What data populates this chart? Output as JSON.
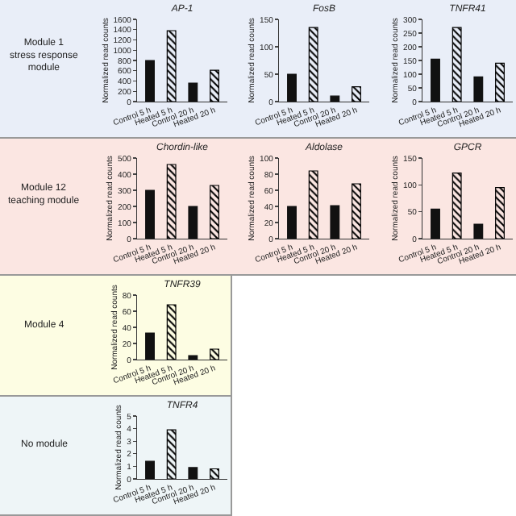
{
  "chart_data": [
    {
      "type": "bar",
      "title": "AP-1",
      "ylabel": "Normalized read counts",
      "categories": [
        "Control 5 h",
        "Heated 5 h",
        "Control 20 h",
        "Heated 20 h"
      ],
      "values": [
        800,
        1380,
        360,
        610
      ],
      "colors": [
        "#111111",
        "#000000",
        "#111111",
        "#000000"
      ],
      "ylim": [
        0,
        1600
      ],
      "yticks": [
        0,
        200,
        400,
        600,
        800,
        1000,
        1200,
        1400,
        1600
      ],
      "annotations": [
        "Module 1\nstress response\nmodule"
      ]
    },
    {
      "type": "bar",
      "title": "FosB",
      "ylabel": "Normalized read counts",
      "categories": [
        "Control 5 h",
        "Heated 5 h",
        "Control 20 h",
        "Heated 20 h"
      ],
      "values": [
        50,
        135,
        10,
        27
      ],
      "colors": [
        "#111111",
        "#000000",
        "#111111",
        "#000000"
      ],
      "ylim": [
        0,
        150
      ],
      "yticks": [
        0,
        50,
        100,
        150
      ]
    },
    {
      "type": "bar",
      "title": "TNFR41",
      "ylabel": "Normalized read counts",
      "categories": [
        "Control 5 h",
        "Heated 5 h",
        "Control 20 h",
        "Heated 20 h"
      ],
      "values": [
        155,
        270,
        90,
        140
      ],
      "colors": [
        "#111111",
        "#000000",
        "#111111",
        "#000000"
      ],
      "ylim": [
        0,
        300
      ],
      "yticks": [
        0,
        50,
        100,
        150,
        200,
        250,
        300
      ]
    },
    {
      "type": "bar",
      "title": "Chordin-like",
      "ylabel": "Normalized read counts",
      "categories": [
        "Control 5 h",
        "Heated 5 h",
        "Control 20 h",
        "Heated 20 h"
      ],
      "values": [
        300,
        460,
        200,
        330
      ],
      "colors": [
        "#111111",
        "#000000",
        "#111111",
        "#000000"
      ],
      "ylim": [
        0,
        500
      ],
      "yticks": [
        0,
        100,
        200,
        300,
        400,
        500
      ],
      "annotations": [
        "Module 12\nteaching module"
      ]
    },
    {
      "type": "bar",
      "title": "Aldolase",
      "ylabel": "Normalized read counts",
      "categories": [
        "Control 5 h",
        "Heated 5 h",
        "Control 20 h",
        "Heated 20 h"
      ],
      "values": [
        40,
        84,
        41,
        68
      ],
      "colors": [
        "#111111",
        "#000000",
        "#111111",
        "#000000"
      ],
      "ylim": [
        0,
        100
      ],
      "yticks": [
        0,
        20,
        40,
        60,
        80,
        100
      ]
    },
    {
      "type": "bar",
      "title": "GPCR",
      "ylabel": "Normalized read counts",
      "categories": [
        "Control 5 h",
        "Heated 5 h",
        "Control 20 h",
        "Heated 20 h"
      ],
      "values": [
        55,
        122,
        27,
        95
      ],
      "colors": [
        "#111111",
        "#000000",
        "#111111",
        "#000000"
      ],
      "ylim": [
        0,
        150
      ],
      "yticks": [
        0,
        50,
        100,
        150
      ]
    },
    {
      "type": "bar",
      "title": "TNFR39",
      "ylabel": "Normalized read counts",
      "categories": [
        "Control 5 h",
        "Heated 5 h",
        "Control 20 h",
        "Heated 20 h"
      ],
      "values": [
        33,
        68,
        5,
        13
      ],
      "colors": [
        "#111111",
        "#000000",
        "#111111",
        "#000000"
      ],
      "ylim": [
        0,
        80
      ],
      "yticks": [
        0,
        20,
        40,
        60,
        80
      ],
      "annotations": [
        "Module 4"
      ]
    },
    {
      "type": "bar",
      "title": "TNFR4",
      "ylabel": "Normalized read counts",
      "categories": [
        "Control 5 h",
        "Heated 5 h",
        "Control 20 h",
        "Heated 20 h"
      ],
      "values": [
        1.4,
        3.9,
        0.9,
        0.8
      ],
      "colors": [
        "#111111",
        "#000000",
        "#111111",
        "#000000"
      ],
      "ylim": [
        0,
        5
      ],
      "yticks": [
        0,
        1,
        2,
        3,
        4,
        5
      ],
      "annotations": [
        "No module"
      ]
    }
  ]
}
